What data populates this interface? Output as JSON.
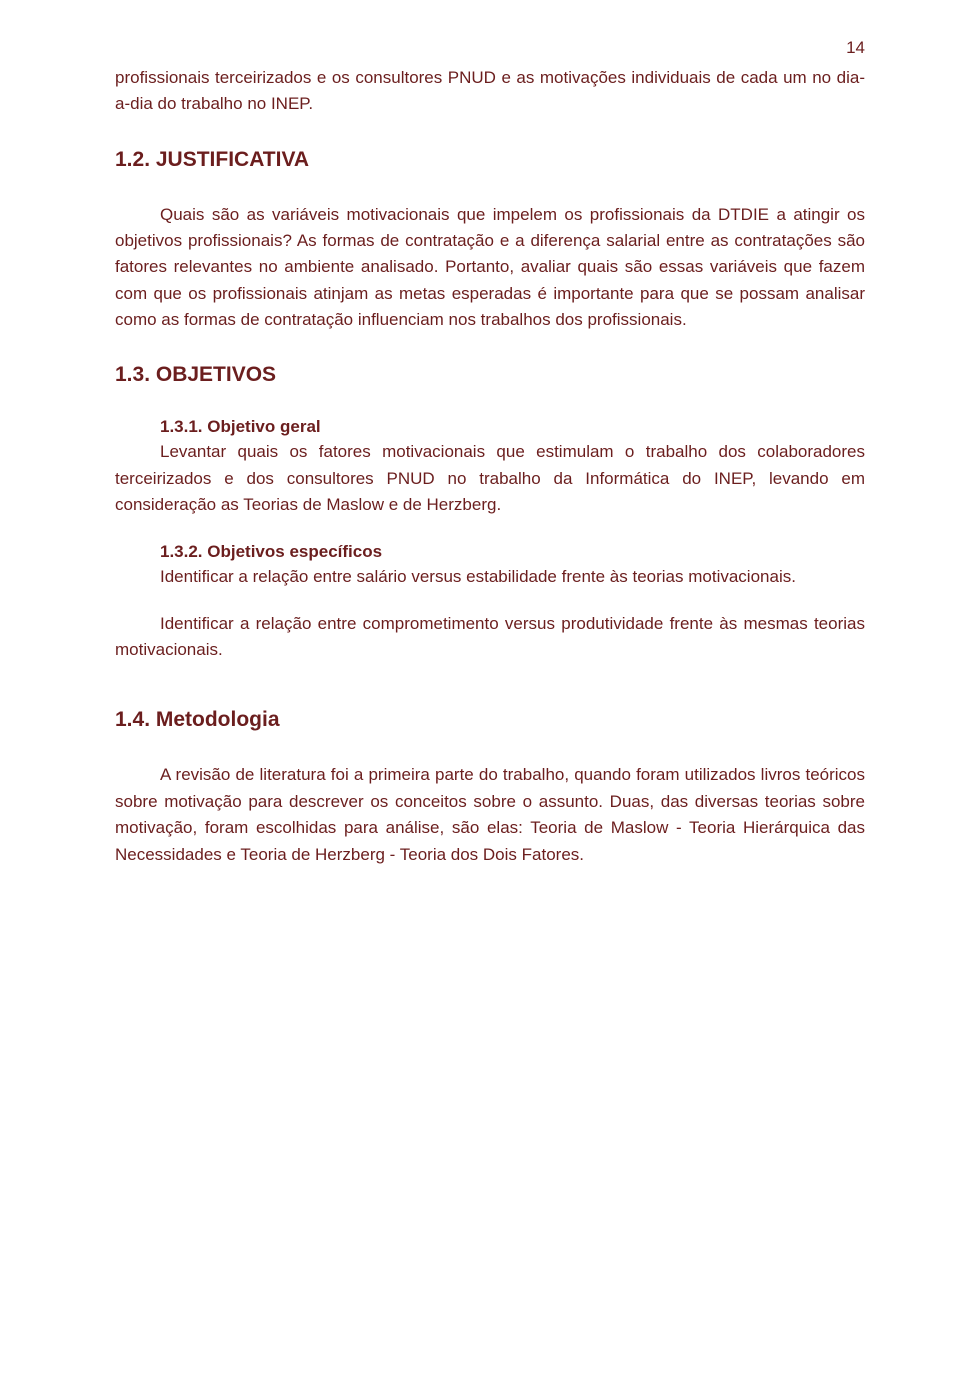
{
  "page_number": "14",
  "text_color": "#6b1e1e",
  "background_color": "#ffffff",
  "font_family": "Arial",
  "body_font_size": 17,
  "heading_font_size": 21,
  "para1": "profissionais terceirizados e os consultores PNUD e as motivações individuais de cada um no dia-a-dia do trabalho no INEP.",
  "heading_justificativa": "1.2. JUSTIFICATIVA",
  "para2": "Quais são as variáveis motivacionais que impelem os profissionais da DTDIE a atingir os objetivos profissionais? As formas de contratação e a diferença salarial entre as contratações são fatores relevantes no ambiente analisado. Portanto, avaliar quais são essas variáveis que fazem com que os profissionais atinjam as metas esperadas é importante para que se possam analisar como as formas de contratação influenciam nos trabalhos dos profissionais.",
  "heading_objetivos": "1.3. OBJETIVOS",
  "heading_obj_geral": "1.3.1. Objetivo geral",
  "para3": "Levantar quais os fatores motivacionais que estimulam o trabalho dos colaboradores terceirizados e dos consultores PNUD no trabalho da Informática do INEP, levando em consideração as Teorias de Maslow e de Herzberg.",
  "heading_obj_espec": "1.3.2. Objetivos específicos",
  "para4": "Identificar a relação entre salário versus estabilidade frente às teorias motivacionais.",
  "para5": "Identificar a relação entre comprometimento versus produtividade frente às mesmas teorias motivacionais.",
  "heading_metodologia": "1.4.  Metodologia",
  "para6": "A revisão de literatura foi a primeira parte do trabalho, quando foram utilizados livros teóricos sobre motivação para descrever os conceitos sobre o assunto. Duas, das diversas teorias sobre motivação, foram escolhidas para análise, são elas: Teoria de Maslow - Teoria Hierárquica das Necessidades e Teoria de Herzberg - Teoria dos Dois Fatores."
}
